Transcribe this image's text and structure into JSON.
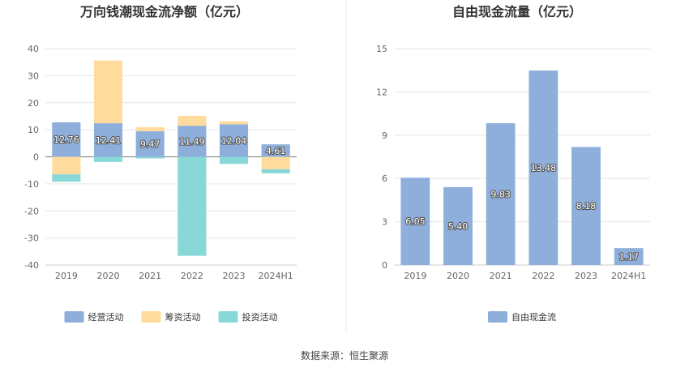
{
  "source": "数据来源：恒生聚源",
  "chart_data": [
    {
      "type": "bar",
      "stacked": true,
      "title": "万向钱潮现金流净额（亿元）",
      "categories": [
        "2019",
        "2020",
        "2021",
        "2022",
        "2023",
        "2024H1"
      ],
      "ylim": [
        -40,
        40
      ],
      "yticks": [
        "40",
        "30",
        "20",
        "10",
        "0",
        "-10",
        "-20",
        "-30",
        "-40"
      ],
      "grid": true,
      "legend_position": "bottom",
      "series": [
        {
          "name": "经营活动",
          "color": "#8eaedb",
          "values": [
            12.76,
            12.41,
            9.47,
            11.49,
            12.04,
            4.61
          ],
          "labels": [
            "12.76",
            "12.41",
            "9.47",
            "11.49",
            "12.04",
            "4.61"
          ]
        },
        {
          "name": "筹资活动",
          "color": "#ffdc9e",
          "values": [
            -6.5,
            23.2,
            1.5,
            3.7,
            1.1,
            -4.6
          ]
        },
        {
          "name": "投资活动",
          "color": "#88d8d8",
          "values": [
            -2.7,
            -1.9,
            -0.6,
            -36.6,
            -2.6,
            -1.5
          ]
        }
      ]
    },
    {
      "type": "bar",
      "title": "自由现金流量（亿元）",
      "categories": [
        "2019",
        "2020",
        "2021",
        "2022",
        "2023",
        "2024H1"
      ],
      "ylim": [
        0,
        15
      ],
      "yticks": [
        "15",
        "12",
        "9",
        "6",
        "3",
        "0"
      ],
      "grid": true,
      "legend_position": "bottom",
      "series": [
        {
          "name": "自由现金流",
          "color": "#8eaedb",
          "values": [
            6.05,
            5.4,
            9.83,
            13.48,
            8.18,
            1.17
          ],
          "labels": [
            "6.05",
            "5.40",
            "9.83",
            "13.48",
            "8.18",
            "1.17"
          ]
        }
      ]
    }
  ]
}
